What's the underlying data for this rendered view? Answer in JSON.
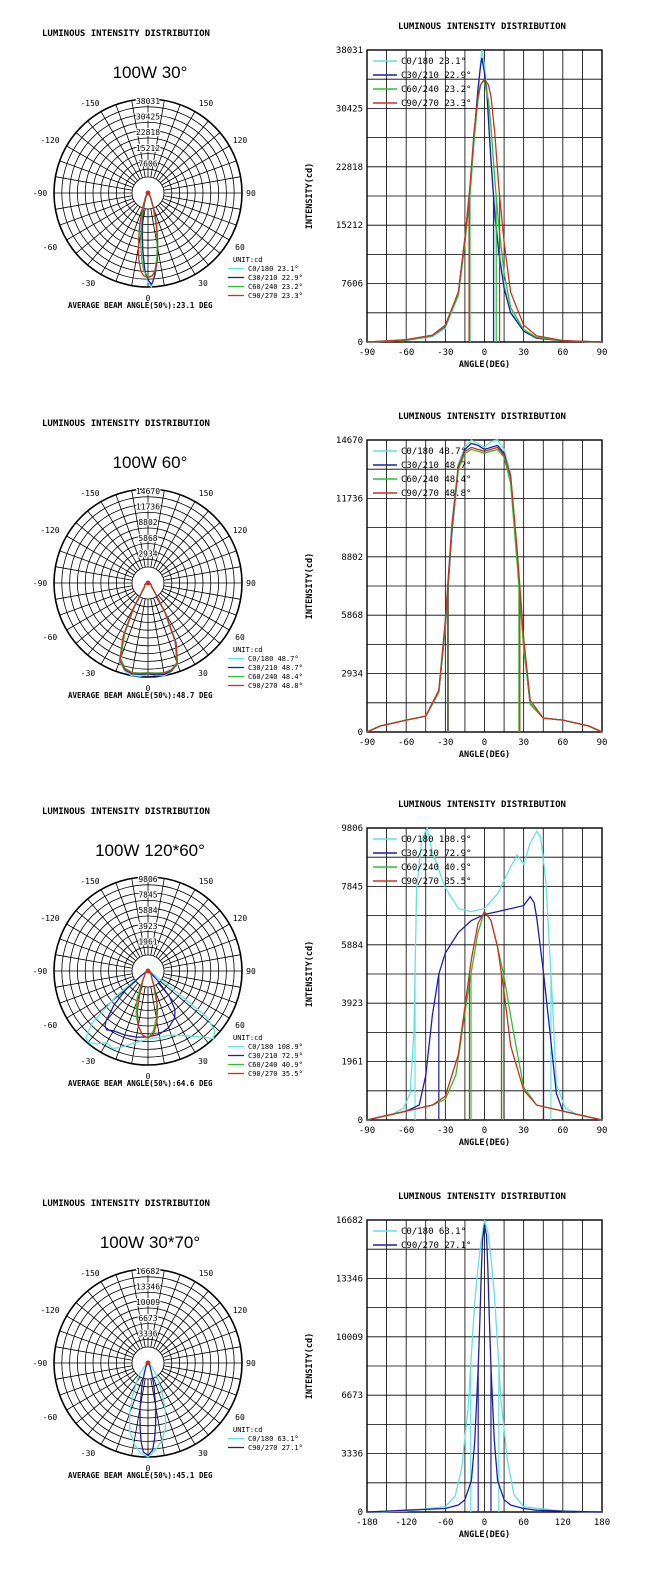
{
  "colors": {
    "cyan": "#5fe3e3",
    "blue": "#1e1eaa",
    "green": "#2fbf2f",
    "red": "#c8331f",
    "grid": "#000000"
  },
  "panels": [
    {
      "title_left": "LUMINOUS INTENSITY DISTRIBUTION",
      "title_right": "LUMINOUS INTENSITY DISTRIBUTION",
      "product": "100W 30°",
      "beam_label": "AVERAGE BEAM ANGLE(50%):23.1 DEG",
      "unit": "UNIT:cd",
      "polar_rings": [
        "38031",
        "30425",
        "22818",
        "15212",
        "7606"
      ],
      "polar_angles": [
        "-150",
        "150",
        "-120",
        "120",
        "-90",
        "90",
        "-60",
        "60",
        "-30",
        "30",
        "0"
      ],
      "chart_data": {
        "type": "line",
        "title": "LUMINOUS INTENSITY DISTRIBUTION",
        "xlabel": "ANGLE(DEG)",
        "ylabel": "INTENSITY(cd)",
        "xlim": [
          -90,
          90
        ],
        "ylim": [
          0,
          38031
        ],
        "xticks": [
          "-90",
          "-60",
          "-30",
          "0",
          "30",
          "60",
          "90"
        ],
        "yticks": [
          "0",
          "7606",
          "15212",
          "22818",
          "30425",
          "38031"
        ],
        "grid": true,
        "legend_position": "top-left",
        "series": [
          {
            "name": "C0/180 23.1°",
            "color": "cyan",
            "x": [
              -90,
              -60,
              -40,
              -30,
              -20,
              -15,
              -11,
              -8,
              -5,
              -3,
              -2,
              0,
              2,
              3,
              5,
              8,
              11,
              15,
              20,
              30,
              40,
              60,
              90
            ],
            "y": [
              0,
              200,
              700,
              1800,
              6000,
              13000,
              19000,
              26000,
              32000,
              36500,
              38031,
              36000,
              33000,
              30000,
              24000,
              17000,
              12000,
              7500,
              4000,
              1500,
              600,
              150,
              0
            ]
          },
          {
            "name": "C30/210 22.9°",
            "color": "blue",
            "x": [
              -90,
              -60,
              -40,
              -30,
              -20,
              -15,
              -11,
              -8,
              -5,
              -3,
              -2,
              0,
              2,
              3,
              5,
              8,
              11,
              15,
              20,
              30,
              40,
              60,
              90
            ],
            "y": [
              0,
              250,
              800,
              2000,
              6500,
              13500,
              20000,
              27000,
              33000,
              36000,
              37000,
              35000,
              32000,
              29000,
              23500,
              16500,
              11500,
              7000,
              3800,
              1400,
              500,
              150,
              0
            ]
          },
          {
            "name": "C60/240 23.2°",
            "color": "green",
            "x": [
              -90,
              -60,
              -40,
              -30,
              -20,
              -15,
              -11,
              -8,
              -5,
              -3,
              -1,
              0,
              1,
              3,
              5,
              8,
              11,
              15,
              20,
              30,
              40,
              60,
              90
            ],
            "y": [
              0,
              250,
              800,
              2100,
              6200,
              12800,
              19500,
              26500,
              31500,
              33500,
              34000,
              33800,
              33000,
              31500,
              28000,
              21000,
              15000,
              9000,
              4500,
              1600,
              600,
              150,
              0
            ]
          },
          {
            "name": "C90/270 23.3°",
            "color": "red",
            "x": [
              -90,
              -60,
              -40,
              -30,
              -20,
              -15,
              -11,
              -8,
              -5,
              -3,
              0,
              3,
              5,
              8,
              11,
              15,
              20,
              30,
              40,
              60,
              90
            ],
            "y": [
              0,
              300,
              900,
              2200,
              6500,
              13500,
              20500,
              27500,
              32000,
              33500,
              34200,
              33500,
              32000,
              27000,
              20000,
              13000,
              6500,
              2200,
              800,
              200,
              0
            ]
          }
        ]
      }
    },
    {
      "title_left": "LUMINOUS INTENSITY DISTRIBUTION",
      "title_right": "LUMINOUS INTENSITY DISTRIBUTION",
      "product": "100W 60°",
      "beam_label": "AVERAGE BEAM ANGLE(50%):48.7 DEG",
      "unit": "UNIT:cd",
      "polar_rings": [
        "14670",
        "11736",
        "8802",
        "5868",
        "2934"
      ],
      "polar_angles": [
        "-150",
        "150",
        "-120",
        "120",
        "-90",
        "90",
        "-60",
        "60",
        "-30",
        "30",
        "0"
      ],
      "chart_data": {
        "type": "line",
        "title": "LUMINOUS INTENSITY DISTRIBUTION",
        "xlabel": "ANGLE(DEG)",
        "ylabel": "INTENSITY(cd)",
        "xlim": [
          -90,
          90
        ],
        "ylim": [
          0,
          14670
        ],
        "xticks": [
          "-90",
          "-60",
          "-30",
          "0",
          "30",
          "60",
          "90"
        ],
        "yticks": [
          "0",
          "2934",
          "5868",
          "8802",
          "11736",
          "14670"
        ],
        "grid": true,
        "legend_position": "top-left",
        "series": [
          {
            "name": "C0/180 48.7°",
            "color": "cyan",
            "x": [
              -90,
              -80,
              -60,
              -45,
              -35,
              -30,
              -25,
              -20,
              -15,
              -10,
              -5,
              0,
              5,
              10,
              15,
              20,
              25,
              30,
              35,
              45,
              60,
              80,
              90
            ],
            "y": [
              0,
              300,
              600,
              800,
              2000,
              5500,
              10500,
              13500,
              14300,
              14670,
              14500,
              14300,
              14600,
              14670,
              14200,
              13000,
              9000,
              4500,
              1500,
              700,
              600,
              300,
              0
            ]
          },
          {
            "name": "C30/210 48.7°",
            "color": "blue",
            "x": [
              -90,
              -80,
              -60,
              -45,
              -35,
              -30,
              -25,
              -20,
              -15,
              -10,
              -5,
              0,
              5,
              10,
              15,
              20,
              25,
              30,
              35,
              45,
              60,
              80,
              90
            ],
            "y": [
              0,
              300,
              600,
              800,
              2000,
              5200,
              10000,
              13300,
              14200,
              14500,
              14400,
              14200,
              14300,
              14400,
              14000,
              12800,
              8800,
              4300,
              1400,
              700,
              600,
              300,
              0
            ]
          },
          {
            "name": "C60/240 48.4°",
            "color": "green",
            "x": [
              -90,
              -80,
              -60,
              -45,
              -35,
              -30,
              -25,
              -20,
              -15,
              -10,
              -5,
              0,
              5,
              10,
              15,
              20,
              25,
              30,
              35,
              45,
              60,
              80,
              90
            ],
            "y": [
              0,
              300,
              600,
              800,
              2000,
              5300,
              10200,
              13200,
              14000,
              14200,
              14100,
              14000,
              14100,
              14200,
              13800,
              12500,
              8500,
              4200,
              1400,
              700,
              600,
              300,
              0
            ]
          },
          {
            "name": "C90/270 48.8°",
            "color": "red",
            "x": [
              -90,
              -80,
              -60,
              -45,
              -35,
              -30,
              -25,
              -20,
              -15,
              -10,
              -5,
              0,
              5,
              10,
              15,
              20,
              25,
              30,
              35,
              45,
              60,
              80,
              90
            ],
            "y": [
              0,
              300,
              600,
              800,
              2100,
              5600,
              10400,
              13400,
              14100,
              14300,
              14200,
              14100,
              14200,
              14300,
              13900,
              12900,
              9200,
              4700,
              1600,
              700,
              600,
              300,
              0
            ]
          }
        ]
      }
    },
    {
      "title_left": "LUMINOUS INTENSITY DISTRIBUTION",
      "title_right": "LUMINOUS INTENSITY DISTRIBUTION",
      "product": "100W 120*60°",
      "beam_label": "AVERAGE BEAM ANGLE(50%):64.6 DEG",
      "unit": "UNIT:cd",
      "polar_rings": [
        "9806",
        "7845",
        "5884",
        "3923",
        "1961"
      ],
      "polar_angles": [
        "-150",
        "150",
        "-120",
        "120",
        "-90",
        "90",
        "-60",
        "60",
        "-30",
        "30",
        "0"
      ],
      "chart_data": {
        "type": "line",
        "title": "LUMINOUS INTENSITY DISTRIBUTION",
        "xlabel": "ANGLE(DEG)",
        "ylabel": "INTENSITY(cd)",
        "xlim": [
          -90,
          90
        ],
        "ylim": [
          0,
          9806
        ],
        "xticks": [
          "-90",
          "-60",
          "-30",
          "0",
          "30",
          "60",
          "90"
        ],
        "yticks": [
          "0",
          "1961",
          "3923",
          "5884",
          "7845",
          "9806"
        ],
        "grid": true,
        "legend_position": "top-left",
        "series": [
          {
            "name": "C0/180 108.9°",
            "color": "cyan",
            "x": [
              -90,
              -70,
              -62,
              -57,
              -54,
              -52,
              -48,
              -44,
              -40,
              -30,
              -20,
              -10,
              0,
              10,
              20,
              25,
              30,
              35,
              40,
              43,
              47,
              52,
              55,
              62,
              70,
              90
            ],
            "y": [
              0,
              200,
              400,
              900,
              3000,
              7800,
              9400,
              9806,
              9000,
              7800,
              7100,
              7000,
              7100,
              7600,
              8500,
              8900,
              8600,
              9300,
              9700,
              9500,
              8000,
              4000,
              1200,
              400,
              200,
              0
            ]
          },
          {
            "name": "C30/210 72.9°",
            "color": "blue",
            "x": [
              -90,
              -60,
              -50,
              -45,
              -40,
              -35,
              -30,
              -20,
              -10,
              0,
              10,
              20,
              30,
              35,
              38,
              40,
              45,
              50,
              55,
              60,
              90
            ],
            "y": [
              0,
              300,
              500,
              1500,
              3500,
              4900,
              5600,
              6300,
              6700,
              6900,
              7000,
              7100,
              7200,
              7500,
              7300,
              6800,
              5000,
              3000,
              900,
              300,
              0
            ]
          },
          {
            "name": "C60/240 40.9°",
            "color": "green",
            "x": [
              -90,
              -60,
              -40,
              -30,
              -22,
              -15,
              -10,
              -5,
              0,
              5,
              10,
              15,
              22,
              30,
              40,
              60,
              90
            ],
            "y": [
              0,
              300,
              500,
              700,
              1500,
              3600,
              5000,
              6300,
              7000,
              6700,
              5800,
              4800,
              3000,
              1100,
              500,
              300,
              0
            ]
          },
          {
            "name": "C90/270 35.5°",
            "color": "red",
            "x": [
              -90,
              -60,
              -40,
              -30,
              -20,
              -15,
              -10,
              -5,
              0,
              5,
              10,
              15,
              20,
              30,
              40,
              60,
              90
            ],
            "y": [
              0,
              300,
              500,
              800,
              2200,
              3800,
              5400,
              6600,
              7000,
              6700,
              5800,
              4300,
              2500,
              1000,
              500,
              300,
              0
            ]
          }
        ]
      }
    },
    {
      "title_left": "LUMINOUS INTENSITY DISTRIBUTION",
      "title_right": "LUMINOUS INTENSITY DISTRIBUTION",
      "product": "100W 30*70°",
      "beam_label": "AVERAGE BEAM ANGLE(50%):45.1 DEG",
      "unit": "UNIT:cd",
      "polar_rings": [
        "16682",
        "13346",
        "10009",
        "6673",
        "3336"
      ],
      "polar_angles": [
        "-150",
        "150",
        "-120",
        "120",
        "-90",
        "90",
        "-60",
        "60",
        "-30",
        "30",
        "0"
      ],
      "chart_data": {
        "type": "line",
        "title": "LUMINOUS INTENSITY DISTRIBUTION",
        "xlabel": "ANGLE(DEG)",
        "ylabel": "INTENSITY(cd)",
        "xlim": [
          -180,
          180
        ],
        "ylim": [
          0,
          16682
        ],
        "xticks": [
          "-180",
          "-120",
          "-60",
          "0",
          "60",
          "120",
          "180"
        ],
        "yticks": [
          "0",
          "3336",
          "6673",
          "10009",
          "13346",
          "16682"
        ],
        "grid": true,
        "legend_position": "top-left",
        "series": [
          {
            "name": "C0/180 63.1°",
            "color": "cyan",
            "x": [
              -180,
              -120,
              -60,
              -45,
              -35,
              -25,
              -20,
              -15,
              -10,
              -5,
              0,
              5,
              10,
              15,
              20,
              25,
              35,
              45,
              60,
              120,
              180
            ],
            "y": [
              0,
              50,
              300,
              900,
              2500,
              6000,
              9000,
              12000,
              14000,
              15500,
              16682,
              16000,
              14500,
              12500,
              9500,
              6500,
              3000,
              1000,
              300,
              50,
              0
            ]
          },
          {
            "name": "C90/270 27.1°",
            "color": "blue",
            "x": [
              -180,
              -120,
              -60,
              -40,
              -30,
              -20,
              -15,
              -10,
              -7,
              -5,
              -3,
              0,
              3,
              5,
              7,
              10,
              15,
              20,
              30,
              40,
              60,
              80,
              120,
              180
            ],
            "y": [
              0,
              100,
              200,
              400,
              700,
              1800,
              4000,
              8000,
              11000,
              13500,
              15500,
              16400,
              15800,
              14000,
              11500,
              8200,
              4100,
              1800,
              700,
              400,
              200,
              100,
              50,
              0
            ]
          }
        ]
      }
    }
  ]
}
